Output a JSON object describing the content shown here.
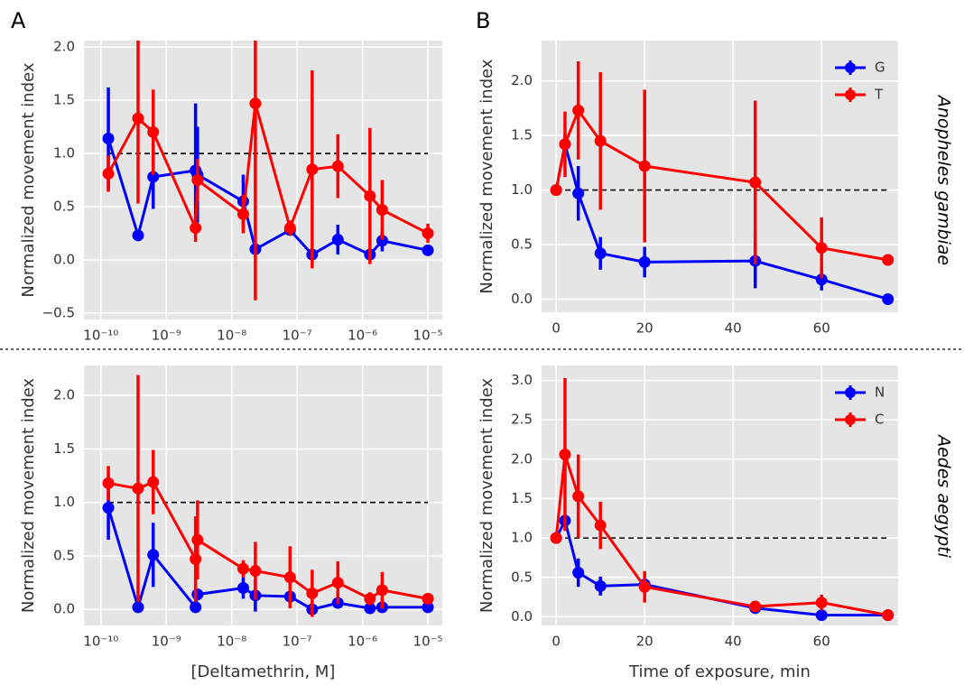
{
  "panel_labels": [
    "A",
    "B"
  ],
  "row_labels": [
    "Anopheles gambiae",
    "Aedes aegypti"
  ],
  "chart_data": [
    {
      "type": "line",
      "ylabel": "Normalized movement index",
      "xscale": "log",
      "grid": true,
      "hline": 1,
      "xlim": [
        5.5e-11,
        1.66e-05
      ],
      "ylim": [
        -0.56,
        2.06
      ],
      "xticks": [
        {
          "value": 1e-10,
          "label": "10⁻¹⁰"
        },
        {
          "value": 1e-09,
          "label": "10⁻⁹"
        },
        {
          "value": 1e-08,
          "label": "10⁻⁸"
        },
        {
          "value": 1e-07,
          "label": "10⁻⁷"
        },
        {
          "value": 1e-06,
          "label": "10⁻⁶"
        },
        {
          "value": 1e-05,
          "label": "10⁻⁵"
        }
      ],
      "yticks": [
        {
          "value": -0.5,
          "label": "−0.5"
        },
        {
          "value": 0,
          "label": "0.0"
        },
        0.5,
        {
          "value": 1,
          "label": "1.0"
        },
        1.5,
        {
          "value": 2,
          "label": "2.0"
        }
      ],
      "series": [
        {
          "color": "#0000ff",
          "x": [
            1.3e-10,
            3.7e-10,
            6.3e-10,
            2.8e-09,
            3e-09,
            1.5e-08,
            2.3e-08,
            7.8e-08,
            1.7e-07,
            4.2e-07,
            1.3e-06,
            2e-06,
            1e-05
          ],
          "values": [
            1.14,
            0.23,
            0.78,
            0.84,
            0.8,
            0.55,
            0.1,
            0.28,
            0.05,
            0.19,
            0.05,
            0.18,
            0.09
          ],
          "errors": [
            0.48,
            0.05,
            0.3,
            0.63,
            0.45,
            0.25,
            0.05,
            0.05,
            0.05,
            0.14,
            0.05,
            0.1,
            0.04
          ]
        },
        {
          "color": "#ff0000",
          "x": [
            1.3e-10,
            3.7e-10,
            6.3e-10,
            2.8e-09,
            3e-09,
            1.5e-08,
            2.3e-08,
            7.8e-08,
            1.7e-07,
            4.2e-07,
            1.3e-06,
            2e-06,
            1e-05
          ],
          "values": [
            0.81,
            1.33,
            1.2,
            0.3,
            0.75,
            0.43,
            1.47,
            0.3,
            0.85,
            0.88,
            0.6,
            0.47,
            0.25
          ],
          "errors": [
            0.17,
            0.8,
            0.4,
            0.13,
            0.2,
            0.18,
            1.85,
            0.07,
            0.93,
            0.3,
            0.64,
            0.28,
            0.09
          ]
        }
      ]
    },
    {
      "type": "line",
      "ylabel": "Normalized movement index",
      "grid": true,
      "hline": 1,
      "legend": "upper right",
      "xlim": [
        -3.3,
        77.3
      ],
      "ylim": [
        -0.12,
        2.37
      ],
      "xticks": [
        0,
        20,
        40,
        60
      ],
      "yticks": [
        {
          "value": 0,
          "label": "0.0"
        },
        0.5,
        {
          "value": 1,
          "label": "1.0"
        },
        1.5,
        {
          "value": 2,
          "label": "2.0"
        }
      ],
      "series": [
        {
          "name": "G",
          "color": "#0000ff",
          "x": [
            0,
            2,
            5,
            10,
            20,
            45,
            60,
            75
          ],
          "values": [
            1.0,
            1.42,
            0.97,
            0.42,
            0.34,
            0.35,
            0.18,
            0.0
          ],
          "errors": [
            0.02,
            0.1,
            0.25,
            0.15,
            0.14,
            0.25,
            0.1,
            0.02
          ]
        },
        {
          "name": "T",
          "color": "#ff0000",
          "x": [
            0,
            2,
            5,
            10,
            20,
            45,
            60,
            75
          ],
          "values": [
            1.0,
            1.42,
            1.73,
            1.45,
            1.22,
            1.07,
            0.47,
            0.36
          ],
          "errors": [
            0.02,
            0.3,
            0.45,
            0.63,
            0.7,
            0.75,
            0.28,
            0.02
          ]
        }
      ]
    },
    {
      "type": "line",
      "ylabel": "Normalized movement index",
      "xlabel": "[Deltamethrin, M]",
      "xscale": "log",
      "grid": true,
      "hline": 1,
      "xlim": [
        5.5e-11,
        1.66e-05
      ],
      "ylim": [
        -0.15,
        2.28
      ],
      "xticks": [
        {
          "value": 1e-10,
          "label": "10⁻¹⁰"
        },
        {
          "value": 1e-09,
          "label": "10⁻⁹"
        },
        {
          "value": 1e-08,
          "label": "10⁻⁸"
        },
        {
          "value": 1e-07,
          "label": "10⁻⁷"
        },
        {
          "value": 1e-06,
          "label": "10⁻⁶"
        },
        {
          "value": 1e-05,
          "label": "10⁻⁵"
        }
      ],
      "yticks": [
        {
          "value": 0,
          "label": "0.0"
        },
        0.5,
        {
          "value": 1,
          "label": "1.0"
        },
        1.5,
        {
          "value": 2,
          "label": "2.0"
        }
      ],
      "series": [
        {
          "color": "#0000ff",
          "x": [
            1.3e-10,
            3.7e-10,
            6.3e-10,
            2.8e-09,
            3e-09,
            1.5e-08,
            2.3e-08,
            7.8e-08,
            1.7e-07,
            4.2e-07,
            1.3e-06,
            2e-06,
            1e-05
          ],
          "values": [
            0.95,
            0.02,
            0.51,
            0.02,
            0.14,
            0.2,
            0.13,
            0.12,
            0.0,
            0.06,
            0.01,
            0.02,
            0.02
          ],
          "errors": [
            0.3,
            0.03,
            0.3,
            0.03,
            0.05,
            0.1,
            0.15,
            0.05,
            0.04,
            0.04,
            0.03,
            0.03,
            0.03
          ]
        },
        {
          "color": "#ff0000",
          "x": [
            1.3e-10,
            3.7e-10,
            6.3e-10,
            2.8e-09,
            3e-09,
            1.5e-08,
            2.3e-08,
            7.8e-08,
            1.7e-07,
            4.2e-07,
            1.3e-06,
            2e-06,
            1e-05
          ],
          "values": [
            1.18,
            1.13,
            1.19,
            0.47,
            0.65,
            0.38,
            0.36,
            0.3,
            0.15,
            0.25,
            0.1,
            0.18,
            0.1
          ],
          "errors": [
            0.16,
            1.06,
            0.3,
            0.4,
            0.37,
            0.08,
            0.27,
            0.29,
            0.22,
            0.2,
            0.06,
            0.17,
            0.05
          ]
        }
      ]
    },
    {
      "type": "line",
      "ylabel": "Normalized movement index",
      "xlabel": "Time of exposure, min",
      "grid": true,
      "hline": 1,
      "legend": "upper right",
      "xlim": [
        -3.3,
        77.3
      ],
      "ylim": [
        -0.11,
        3.19
      ],
      "xticks": [
        0,
        20,
        40,
        60
      ],
      "yticks": [
        {
          "value": 0,
          "label": "0.0"
        },
        0.5,
        {
          "value": 1,
          "label": "1.0"
        },
        1.5,
        {
          "value": 2,
          "label": "2.0"
        },
        2.5,
        {
          "value": 3,
          "label": "3.0"
        }
      ],
      "series": [
        {
          "name": "N",
          "color": "#0000ff",
          "x": [
            0,
            2,
            5,
            10,
            20,
            45,
            60,
            75
          ],
          "values": [
            1.0,
            1.22,
            0.56,
            0.39,
            0.41,
            0.11,
            0.02,
            0.02
          ],
          "errors": [
            0.02,
            0.05,
            0.18,
            0.12,
            0.1,
            0.03,
            0.02,
            0.02
          ]
        },
        {
          "name": "C",
          "color": "#ff0000",
          "x": [
            0,
            2,
            5,
            10,
            20,
            45,
            60,
            75
          ],
          "values": [
            1.0,
            2.06,
            1.53,
            1.16,
            0.38,
            0.13,
            0.18,
            0.02
          ],
          "errors": [
            0.02,
            0.97,
            0.53,
            0.3,
            0.2,
            0.05,
            0.1,
            0.02
          ]
        }
      ]
    }
  ]
}
